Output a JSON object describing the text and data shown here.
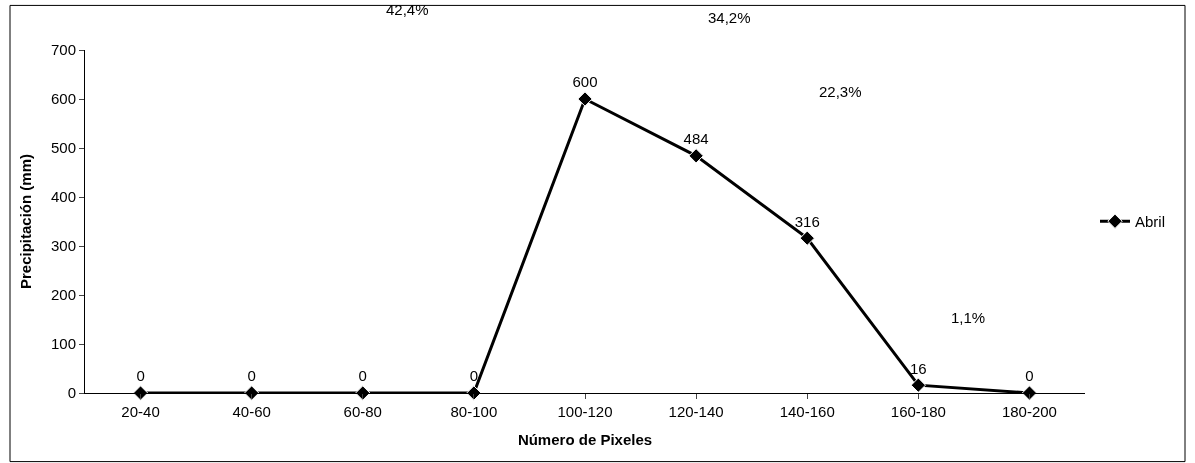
{
  "chart_data": {
    "type": "line",
    "xlabel": "Número de Pixeles",
    "ylabel": "Precipitación (mm)",
    "categories": [
      "20-40",
      "40-60",
      "60-80",
      "80-100",
      "100-120",
      "120-140",
      "140-160",
      "160-180",
      "180-200"
    ],
    "series": [
      {
        "name": "Abril",
        "color": "#000000",
        "values": [
          0,
          0,
          0,
          0,
          600,
          484,
          316,
          16,
          0
        ]
      }
    ],
    "ylim": [
      0,
      700
    ],
    "yticks": [
      0,
      100,
      200,
      300,
      400,
      500,
      600,
      700
    ],
    "grid": false,
    "legend": "right",
    "marker": "diamond",
    "line_style": "solid",
    "data_labels": true,
    "annotations": [
      "42,4%",
      "34,2%",
      "22,3%",
      "1,1%"
    ]
  }
}
